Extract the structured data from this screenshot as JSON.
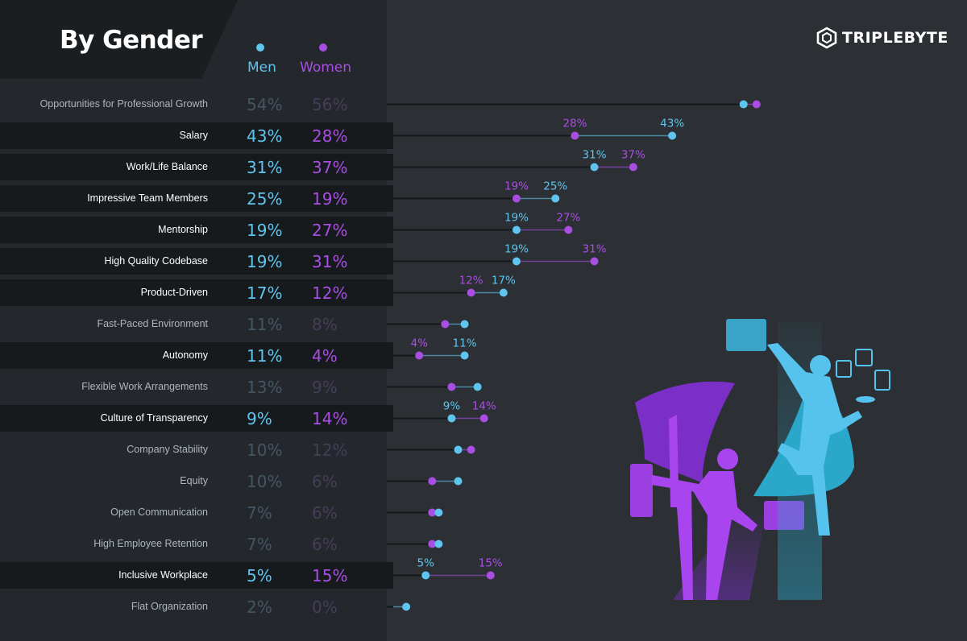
{
  "title": "By Gender",
  "brand": "TRIPLEBYTE",
  "legend": {
    "men": "Men",
    "women": "Women"
  },
  "colors": {
    "men": "#5fc4ee",
    "women": "#a84ee2",
    "background": "#2c2f33",
    "panel": "#24272b",
    "highlight_row": "#161a1d"
  },
  "chart_data": {
    "type": "dumbbell",
    "title": "By Gender",
    "xlabel": "",
    "ylabel": "",
    "xlim": [
      0,
      60
    ],
    "series_names": [
      "Men",
      "Women"
    ],
    "categories": [
      "Opportunities for Professional Growth",
      "Salary",
      "Work/Life Balance",
      "Impressive Team Members",
      "Mentorship",
      "High Quality Codebase",
      "Product-Driven",
      "Fast-Paced Environment",
      "Autonomy",
      "Flexible Work Arrangements",
      "Culture of Transparency",
      "Company Stability",
      "Equity",
      "Open Communication",
      "High Employee Retention",
      "Inclusive Workplace",
      "Flat Organization"
    ],
    "rows": [
      {
        "label": "Opportunities for Professional Growth",
        "men": 54,
        "women": 56,
        "men_text": "54%",
        "women_text": "56%",
        "highlight": false
      },
      {
        "label": "Salary",
        "men": 43,
        "women": 28,
        "men_text": "43%",
        "women_text": "28%",
        "highlight": true
      },
      {
        "label": "Work/Life Balance",
        "men": 31,
        "women": 37,
        "men_text": "31%",
        "women_text": "37%",
        "highlight": true
      },
      {
        "label": "Impressive Team Members",
        "men": 25,
        "women": 19,
        "men_text": "25%",
        "women_text": "19%",
        "highlight": true
      },
      {
        "label": "Mentorship",
        "men": 19,
        "women": 27,
        "men_text": "19%",
        "women_text": "27%",
        "highlight": true
      },
      {
        "label": "High Quality Codebase",
        "men": 19,
        "women": 31,
        "men_text": "19%",
        "women_text": "31%",
        "highlight": true
      },
      {
        "label": "Product-Driven",
        "men": 17,
        "women": 12,
        "men_text": "17%",
        "women_text": "12%",
        "highlight": true
      },
      {
        "label": "Fast-Paced Environment",
        "men": 11,
        "women": 8,
        "men_text": "11%",
        "women_text": "8%",
        "highlight": false
      },
      {
        "label": "Autonomy",
        "men": 11,
        "women": 4,
        "men_text": "11%",
        "women_text": "4%",
        "highlight": true
      },
      {
        "label": "Flexible Work Arrangements",
        "men": 13,
        "women": 9,
        "men_text": "13%",
        "women_text": "9%",
        "highlight": false
      },
      {
        "label": "Culture of Transparency",
        "men": 9,
        "women": 14,
        "men_text": "9%",
        "women_text": "14%",
        "highlight": true
      },
      {
        "label": "Company Stability",
        "men": 10,
        "women": 12,
        "men_text": "10%",
        "women_text": "12%",
        "highlight": false
      },
      {
        "label": "Equity",
        "men": 10,
        "women": 6,
        "men_text": "10%",
        "women_text": "6%",
        "highlight": false
      },
      {
        "label": "Open Communication",
        "men": 7,
        "women": 6,
        "men_text": "7%",
        "women_text": "6%",
        "highlight": false
      },
      {
        "label": "High Employee Retention",
        "men": 7,
        "women": 6,
        "men_text": "7%",
        "women_text": "6%",
        "highlight": false
      },
      {
        "label": "Inclusive Workplace",
        "men": 5,
        "women": 15,
        "men_text": "5%",
        "women_text": "15%",
        "highlight": true
      },
      {
        "label": "Flat Organization",
        "men": 2,
        "women": 0,
        "men_text": "2%",
        "women_text": "0%",
        "highlight": false
      }
    ]
  }
}
